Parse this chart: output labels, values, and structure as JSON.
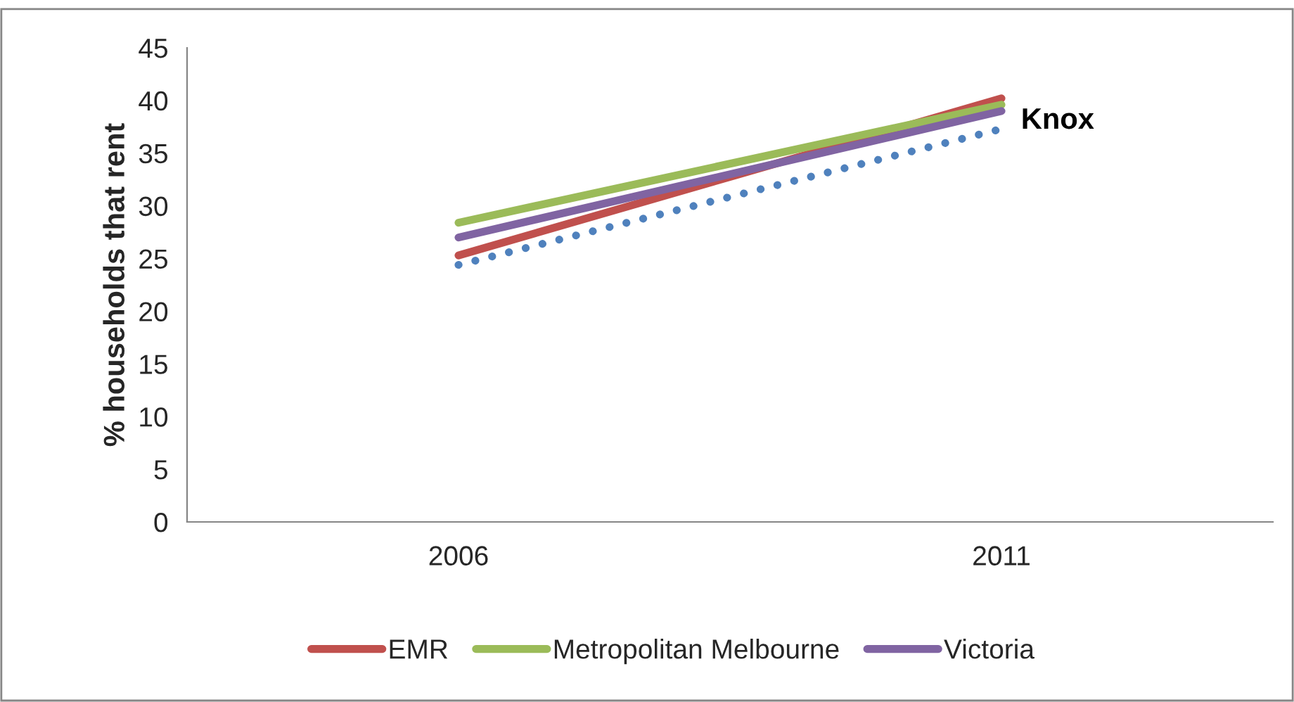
{
  "chart_data": {
    "type": "line",
    "ylabel": "% households that rent",
    "categories": [
      "2006",
      "2011"
    ],
    "series": [
      {
        "name": "EMR",
        "color": "#c0504d",
        "values": [
          25.3,
          40.2
        ]
      },
      {
        "name": "Metropolitan Melbourne",
        "color": "#9bbb59",
        "values": [
          28.4,
          39.6
        ]
      },
      {
        "name": "Victoria",
        "color": "#8064a2",
        "values": [
          27.0,
          39.0
        ]
      },
      {
        "name": "Knox",
        "color": "#4f81bd",
        "values": [
          24.4,
          37.3
        ],
        "line_style": "dotted"
      }
    ],
    "ylim": [
      0,
      45
    ],
    "yticks": [
      0,
      5,
      10,
      15,
      20,
      25,
      30,
      35,
      40,
      45
    ],
    "grid": false,
    "legend": "bottom",
    "marker": "none",
    "line_style": "solid"
  }
}
